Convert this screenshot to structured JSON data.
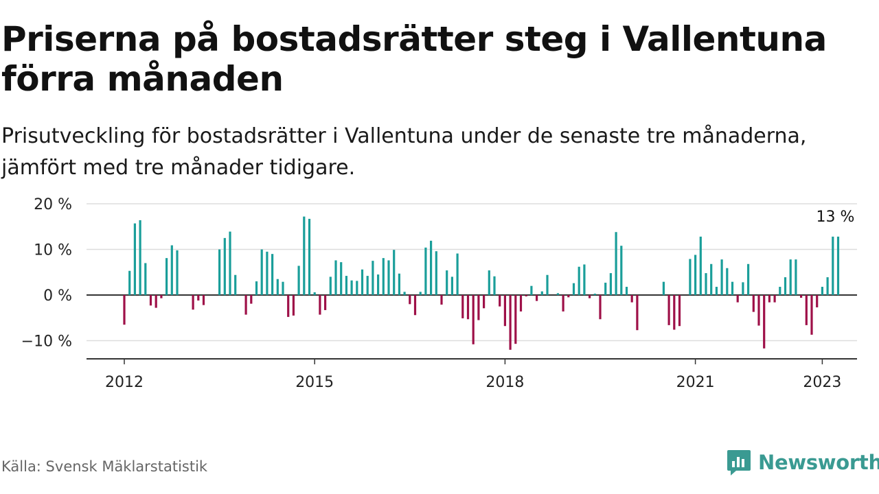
{
  "header": {
    "title": "Priserna på bostadsrätter steg i Vallentuna förra månaden",
    "subtitle": "Prisutveckling för bostadsrätter i Vallentuna under de senaste tre månaderna, jämfört med tre månader tidigare."
  },
  "footer": {
    "source": "Källa: Svensk Mäklarstatistik",
    "brand": "Newsworthy"
  },
  "colors": {
    "positive": "#1a9e9a",
    "negative": "#9e1048",
    "grid": "#dddddd",
    "axis": "#333333",
    "brand": "#3a9a92"
  },
  "icons": {
    "brand": "bar-chart-chat-icon"
  },
  "chart_data": {
    "type": "bar",
    "title": "Priserna på bostadsrätter steg i Vallentuna förra månaden",
    "subtitle": "Prisutveckling för bostadsrätter i Vallentuna under de senaste tre månaderna, jämfört med tre månader tidigare.",
    "xlabel": "",
    "ylabel": "",
    "x_start": "2012-01",
    "x_end": "2023-01",
    "x_ticks": [
      "2012",
      "2015",
      "2018",
      "2021",
      "2023"
    ],
    "y_ticks": [
      "20 %",
      "10 %",
      "0 %",
      "−10 %"
    ],
    "y_tick_values": [
      20,
      10,
      0,
      -10
    ],
    "ylim": [
      -14,
      20
    ],
    "grid": true,
    "end_label": "13 %",
    "values": [
      -6.5,
      5.3,
      15.7,
      16.4,
      7.0,
      -2.3,
      -2.8,
      -0.7,
      8.1,
      10.9,
      9.8,
      null,
      null,
      -3.2,
      -1.2,
      -2.2,
      null,
      null,
      10.0,
      12.5,
      13.9,
      4.4,
      null,
      -4.3,
      -1.9,
      3.0,
      10.0,
      9.5,
      9.0,
      3.5,
      2.9,
      -4.8,
      -4.5,
      6.4,
      17.2,
      16.7,
      0.6,
      -4.3,
      -3.3,
      4.0,
      7.6,
      7.2,
      4.2,
      3.2,
      3.1,
      5.6,
      4.2,
      7.5,
      4.5,
      8.1,
      7.6,
      9.9,
      4.7,
      0.7,
      -2.0,
      -4.4,
      0.7,
      10.4,
      11.9,
      9.6,
      -2.1,
      5.4,
      4.0,
      9.1,
      -5.1,
      -5.3,
      -10.8,
      -5.5,
      -2.9,
      5.4,
      4.1,
      -2.5,
      -6.8,
      -12.0,
      -10.7,
      -3.6,
      -0.3,
      2.0,
      -1.3,
      0.8,
      4.4,
      null,
      0.4,
      -3.6,
      -0.5,
      2.6,
      6.2,
      6.7,
      -0.7,
      0.3,
      -5.3,
      2.7,
      4.8,
      13.8,
      10.8,
      1.8,
      -1.6,
      -7.7,
      null,
      null,
      null,
      null,
      2.9,
      -6.6,
      -7.6,
      -6.8,
      null,
      7.9,
      8.8,
      12.8,
      4.8,
      6.8,
      1.8,
      7.8,
      5.9,
      2.9,
      -1.6,
      2.8,
      6.8,
      -3.7,
      -6.7,
      -11.7,
      -1.6,
      -1.6,
      1.8,
      3.9,
      7.8,
      7.8,
      -0.6,
      -6.6,
      -8.7,
      -2.7,
      1.8,
      3.9,
      12.8,
      12.8
    ]
  }
}
